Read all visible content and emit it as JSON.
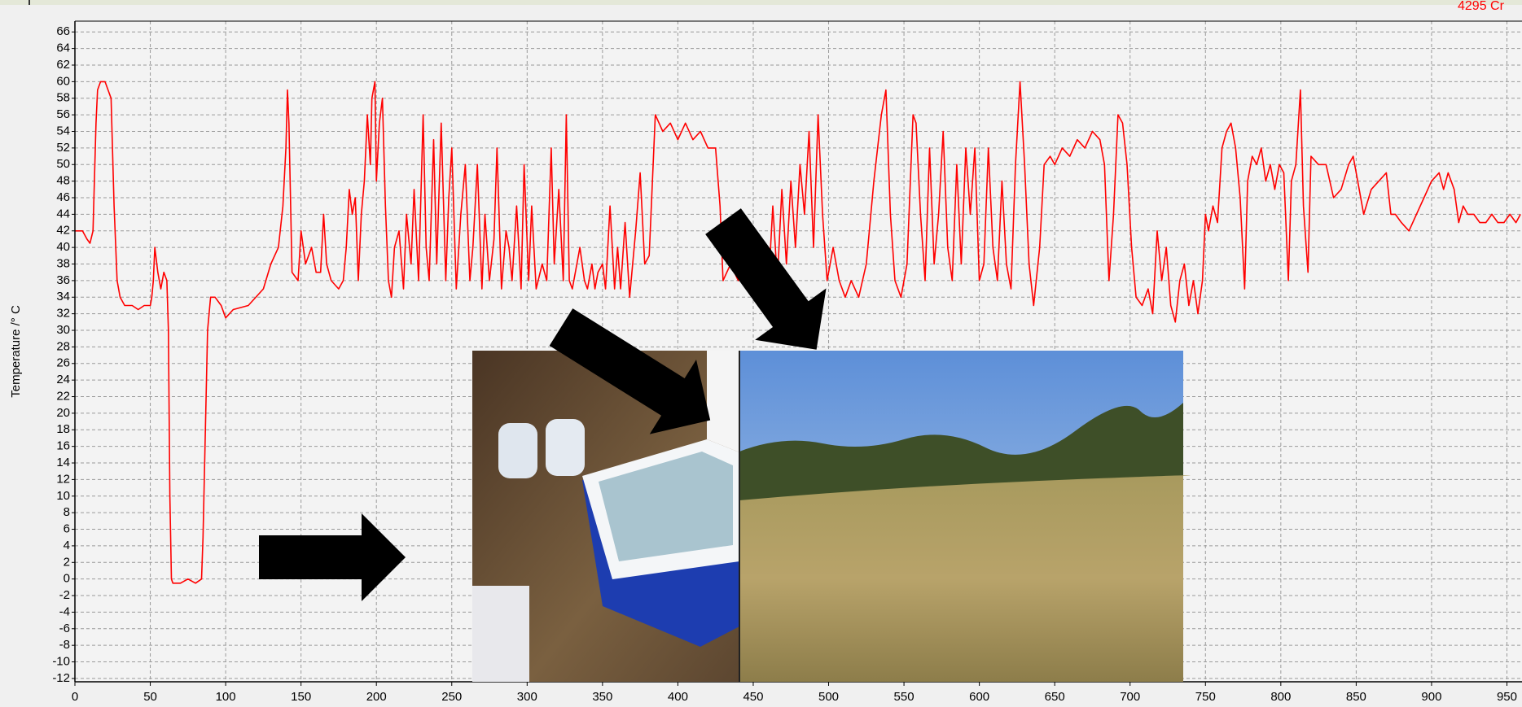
{
  "chart_data": {
    "type": "line",
    "y_label": "Temperature /° C",
    "annotation": "4295 Cr",
    "color": "#ff0000",
    "grid": true,
    "xlim": [
      0,
      960
    ],
    "ylim": [
      -12.4,
      67.3
    ],
    "xticks": [
      0,
      50,
      100,
      150,
      200,
      250,
      300,
      350,
      400,
      450,
      500,
      550,
      600,
      650,
      700,
      750,
      800,
      850,
      900,
      950
    ],
    "yticks": [
      -12,
      -10,
      -8,
      -6,
      -4,
      -2,
      0,
      2,
      4,
      6,
      8,
      10,
      12,
      14,
      16,
      18,
      20,
      22,
      24,
      26,
      28,
      30,
      32,
      34,
      36,
      38,
      40,
      42,
      44,
      46,
      48,
      50,
      52,
      54,
      56,
      58,
      60,
      62,
      64,
      66
    ],
    "x": [
      0,
      5,
      8,
      10,
      12,
      14,
      15,
      17,
      20,
      22,
      24,
      26,
      28,
      30,
      33,
      38,
      42,
      46,
      50,
      51,
      52,
      53,
      55,
      57,
      59,
      61,
      62,
      63,
      64,
      65,
      70,
      75,
      80,
      84,
      85,
      88,
      90,
      93,
      97,
      100,
      105,
      115,
      125,
      130,
      135,
      138,
      140,
      141,
      142,
      144,
      148,
      150,
      153,
      157,
      160,
      163,
      165,
      167,
      170,
      175,
      178,
      180,
      182,
      184,
      186,
      188,
      190,
      192,
      194,
      196,
      197,
      199,
      200,
      202,
      204,
      206,
      208,
      210,
      212,
      215,
      218,
      220,
      223,
      225,
      228,
      231,
      233,
      235,
      238,
      240,
      243,
      246,
      248,
      250,
      253,
      256,
      259,
      262,
      264,
      267,
      270,
      272,
      275,
      278,
      280,
      283,
      286,
      288,
      290,
      293,
      296,
      298,
      301,
      303,
      306,
      310,
      313,
      316,
      318,
      321,
      324,
      326,
      328,
      330,
      335,
      338,
      340,
      343,
      345,
      347,
      350,
      352,
      355,
      358,
      360,
      362,
      365,
      368,
      372,
      375,
      378,
      381,
      385,
      390,
      395,
      400,
      405,
      410,
      415,
      420,
      425,
      428,
      430,
      435,
      440,
      445,
      450,
      455,
      460,
      463,
      466,
      469,
      472,
      475,
      478,
      481,
      484,
      487,
      490,
      493,
      496,
      499,
      503,
      507,
      511,
      515,
      520,
      525,
      530,
      535,
      538,
      541,
      544,
      548,
      552,
      556,
      558,
      561,
      564,
      567,
      570,
      573,
      576,
      579,
      582,
      585,
      588,
      591,
      594,
      597,
      600,
      603,
      606,
      609,
      612,
      615,
      618,
      621,
      624,
      627,
      630,
      633,
      636,
      640,
      643,
      647,
      650,
      655,
      660,
      665,
      670,
      675,
      680,
      683,
      686,
      689,
      692,
      695,
      698,
      701,
      704,
      708,
      712,
      715,
      718,
      721,
      724,
      727,
      730,
      733,
      736,
      739,
      742,
      745,
      748,
      750,
      752,
      755,
      758,
      761,
      764,
      767,
      770,
      773,
      776,
      778,
      781,
      784,
      787,
      790,
      793,
      796,
      799,
      802,
      805,
      807,
      810,
      813,
      815,
      818,
      820,
      825,
      830,
      835,
      840,
      845,
      848,
      852,
      855,
      860,
      865,
      870,
      873,
      876,
      880,
      885,
      890,
      895,
      900,
      905,
      908,
      911,
      915,
      918,
      921,
      924,
      928,
      932,
      936,
      940,
      944,
      948,
      952,
      956,
      959
    ],
    "values": [
      42,
      42,
      41,
      40.5,
      42,
      55,
      59,
      60,
      60,
      59,
      58,
      45,
      36,
      34,
      33,
      33,
      32.5,
      33,
      33,
      34,
      36,
      40,
      37,
      35,
      37,
      36,
      30,
      10,
      0,
      -0.5,
      -0.5,
      0,
      -0.5,
      0,
      5,
      30,
      34,
      34,
      33,
      31.5,
      32.5,
      33,
      35,
      38,
      40,
      45,
      52,
      59,
      55,
      37,
      36,
      42,
      38,
      40,
      37,
      37,
      44,
      38,
      36,
      35,
      36,
      40,
      47,
      44,
      46,
      36,
      44,
      48,
      56,
      50,
      58,
      60,
      48,
      55,
      58,
      45,
      36,
      34,
      40,
      42,
      35,
      44,
      38,
      47,
      36,
      56,
      40,
      36,
      53,
      38,
      55,
      36,
      46,
      52,
      35,
      44,
      50,
      36,
      40,
      50,
      35,
      44,
      36,
      41,
      52,
      35,
      42,
      40,
      36,
      45,
      35,
      50,
      36,
      45,
      35,
      38,
      36,
      52,
      38,
      47,
      36,
      56,
      36,
      35,
      40,
      36,
      35,
      38,
      35,
      37,
      38,
      35,
      45,
      35,
      40,
      35,
      43,
      34,
      42,
      49,
      38,
      39,
      56,
      54,
      55,
      53,
      55,
      53,
      54,
      52,
      52,
      45,
      36,
      38,
      36,
      40,
      36,
      38,
      35,
      45,
      36,
      47,
      38,
      48,
      40,
      50,
      44,
      54,
      40,
      56,
      44,
      36,
      40,
      36,
      34,
      36,
      34,
      38,
      48,
      56,
      59,
      44,
      36,
      34,
      38,
      56,
      55,
      44,
      36,
      52,
      38,
      44,
      54,
      40,
      36,
      50,
      38,
      52,
      44,
      52,
      36,
      38,
      52,
      40,
      36,
      48,
      38,
      35,
      50,
      60,
      50,
      38,
      33,
      40,
      50,
      51,
      50,
      52,
      51,
      53,
      52,
      54,
      53,
      50,
      36,
      44,
      56,
      55,
      50,
      40,
      34,
      33,
      35,
      32,
      42,
      36,
      40,
      33,
      31,
      36,
      38,
      33,
      36,
      32,
      36,
      44,
      42,
      45,
      43,
      52,
      54,
      55,
      52,
      46,
      35,
      48,
      51,
      50,
      52,
      48,
      50,
      47,
      50,
      49,
      36,
      48,
      50,
      59,
      45,
      37,
      51,
      50,
      50,
      46,
      47,
      50,
      51,
      47,
      44,
      47,
      48,
      49,
      44,
      44,
      43,
      42,
      44,
      46,
      48,
      49,
      47,
      49,
      47,
      43,
      45,
      44,
      44,
      43,
      43,
      44,
      43,
      43,
      44,
      43,
      44
    ]
  }
}
